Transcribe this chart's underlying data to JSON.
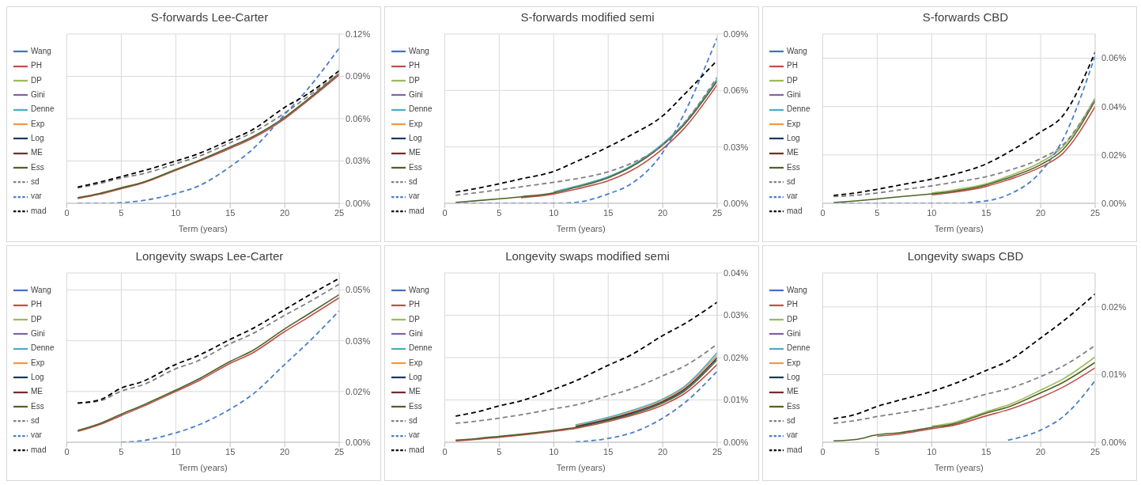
{
  "chart_data": [
    {
      "type": "line",
      "title": "S-forwards Lee-Carter",
      "xlabel": "Term (years)",
      "x": [
        1,
        3,
        5,
        7,
        10,
        12,
        15,
        17,
        20,
        22,
        25
      ],
      "xlim": [
        0,
        25
      ],
      "xticks": [
        0,
        5,
        10,
        15,
        20,
        25
      ],
      "ylim": [
        0,
        0.12
      ],
      "yticks": [
        {
          "value": 0,
          "label": "0.00%"
        },
        {
          "value": 0.03,
          "label": "0.03%"
        },
        {
          "value": 0.06,
          "label": "0.06%"
        },
        {
          "value": 0.09,
          "label": "0.09%"
        },
        {
          "value": 0.12,
          "label": "0.12%"
        }
      ],
      "grid": true,
      "legend": "left",
      "series": [
        {
          "name": "Wang",
          "color": "#4472c4",
          "line_style": "solid",
          "values": [
            null,
            null,
            null,
            null,
            null,
            null,
            null,
            null,
            null,
            null,
            null
          ]
        },
        {
          "name": "PH",
          "color": "#c0504d",
          "line_style": "solid",
          "values": [
            0.0034,
            0.0064,
            0.0104,
            0.0144,
            0.0234,
            0.0294,
            0.039,
            0.046,
            0.06,
            0.072,
            0.091
          ]
        },
        {
          "name": "DP",
          "color": "#9bbb59",
          "line_style": "solid",
          "values": [
            null,
            null,
            null,
            null,
            null,
            null,
            null,
            null,
            null,
            null,
            null
          ]
        },
        {
          "name": "Gini",
          "color": "#8064a2",
          "line_style": "solid",
          "values": [
            null,
            null,
            null,
            null,
            null,
            null,
            null,
            null,
            null,
            null,
            null
          ]
        },
        {
          "name": "Denne",
          "color": "#4bacc6",
          "line_style": "solid",
          "values": [
            null,
            null,
            null,
            null,
            null,
            null,
            null,
            null,
            null,
            null,
            null
          ]
        },
        {
          "name": "Exp",
          "color": "#f79646",
          "line_style": "solid",
          "values": [
            null,
            null,
            null,
            null,
            null,
            null,
            null,
            null,
            null,
            null,
            null
          ]
        },
        {
          "name": "Log",
          "color": "#1f3864",
          "line_style": "solid",
          "values": [
            null,
            null,
            null,
            null,
            null,
            null,
            null,
            null,
            null,
            null,
            null
          ]
        },
        {
          "name": "ME",
          "color": "#772c2a",
          "line_style": "solid",
          "values": [
            null,
            null,
            null,
            null,
            null,
            null,
            null,
            null,
            null,
            null,
            null
          ]
        },
        {
          "name": "Ess",
          "color": "#4f6228",
          "line_style": "solid",
          "values": [
            0.004,
            0.007,
            0.011,
            0.015,
            0.024,
            0.03,
            0.04,
            0.047,
            0.061,
            0.073,
            0.092
          ]
        },
        {
          "name": "sd",
          "color": "#808080",
          "line_style": "dashed",
          "values": [
            0.011,
            0.014,
            0.018,
            0.021,
            0.028,
            0.033,
            0.043,
            0.05,
            0.064,
            0.075,
            0.092
          ]
        },
        {
          "name": "var",
          "color": "#4a7ec8",
          "line_style": "dashed",
          "values": [
            0,
            0,
            0.0005,
            0.002,
            0.007,
            0.012,
            0.026,
            0.038,
            0.063,
            0.08,
            0.11
          ]
        },
        {
          "name": "mad",
          "color": "#000000",
          "line_style": "dashed",
          "values": [
            0.0115,
            0.015,
            0.019,
            0.023,
            0.03,
            0.035,
            0.045,
            0.052,
            0.068,
            0.077,
            0.094
          ]
        }
      ]
    },
    {
      "type": "line",
      "title": "S-forwards modified semi",
      "xlabel": "Term (years)",
      "x": [
        1,
        3,
        5,
        7,
        10,
        12,
        15,
        17,
        20,
        22,
        25
      ],
      "xlim": [
        0,
        25
      ],
      "xticks": [
        0,
        5,
        10,
        15,
        20,
        25
      ],
      "ylim": [
        0,
        0.09
      ],
      "yticks": [
        {
          "value": 0,
          "label": "0.00%"
        },
        {
          "value": 0.03,
          "label": "0.03%"
        },
        {
          "value": 0.06,
          "label": "0.06%"
        },
        {
          "value": 0.09,
          "label": "0.09%"
        }
      ],
      "grid": true,
      "legend": "left",
      "series": [
        {
          "name": "Wang",
          "color": "#4472c4",
          "line_style": "solid",
          "values": [
            null,
            null,
            null,
            null,
            null,
            null,
            null,
            null,
            null,
            null,
            null
          ]
        },
        {
          "name": "PH",
          "color": "#c0504d",
          "line_style": "solid",
          "values": [
            null,
            null,
            null,
            0.003,
            0.005,
            0.0075,
            0.012,
            0.017,
            0.029,
            0.04,
            0.063
          ]
        },
        {
          "name": "DP",
          "color": "#9bbb59",
          "line_style": "solid",
          "values": [
            null,
            null,
            null,
            null,
            null,
            null,
            null,
            null,
            null,
            null,
            null
          ]
        },
        {
          "name": "Gini",
          "color": "#8064a2",
          "line_style": "solid",
          "values": [
            null,
            null,
            null,
            null,
            null,
            null,
            null,
            null,
            null,
            null,
            null
          ]
        },
        {
          "name": "Denne",
          "color": "#4bacc6",
          "line_style": "solid",
          "values": [
            null,
            null,
            null,
            null,
            0.0061,
            0.009,
            0.0142,
            0.0196,
            0.0317,
            0.0427,
            0.066
          ]
        },
        {
          "name": "Exp",
          "color": "#f79646",
          "line_style": "solid",
          "values": [
            null,
            null,
            null,
            null,
            null,
            null,
            null,
            null,
            null,
            null,
            null
          ]
        },
        {
          "name": "Log",
          "color": "#1f3864",
          "line_style": "solid",
          "values": [
            null,
            null,
            null,
            null,
            null,
            null,
            null,
            null,
            null,
            null,
            null
          ]
        },
        {
          "name": "ME",
          "color": "#772c2a",
          "line_style": "solid",
          "values": [
            null,
            null,
            null,
            null,
            null,
            null,
            null,
            null,
            null,
            null,
            null
          ]
        },
        {
          "name": "Ess",
          "color": "#4f6228",
          "line_style": "solid",
          "values": [
            0.0005,
            0.0014,
            0.0024,
            0.0035,
            0.0056,
            0.0085,
            0.0136,
            0.019,
            0.031,
            0.042,
            0.065
          ]
        },
        {
          "name": "sd",
          "color": "#808080",
          "line_style": "dashed",
          "values": [
            0.0043,
            0.0057,
            0.0072,
            0.0088,
            0.0112,
            0.013,
            0.0168,
            0.021,
            0.031,
            0.043,
            0.067
          ]
        },
        {
          "name": "var",
          "color": "#4a7ec8",
          "line_style": "dashed",
          "values": [
            0,
            0,
            0,
            0,
            0,
            0.0005,
            0.005,
            0.01,
            0.027,
            0.048,
            0.088
          ]
        },
        {
          "name": "mad",
          "color": "#000000",
          "line_style": "dashed",
          "values": [
            0.006,
            0.008,
            0.0104,
            0.013,
            0.017,
            0.022,
            0.03,
            0.036,
            0.0465,
            0.058,
            0.076
          ]
        }
      ]
    },
    {
      "type": "line",
      "title": "S-forwards CBD",
      "xlabel": "Term (years)",
      "x": [
        1,
        3,
        5,
        7,
        10,
        12,
        15,
        17,
        20,
        22,
        25
      ],
      "xlim": [
        0,
        25
      ],
      "xticks": [
        0,
        5,
        10,
        15,
        20,
        25
      ],
      "ylim": [
        0,
        0.07
      ],
      "yticks": [
        {
          "value": 0,
          "label": "0.00%"
        },
        {
          "value": 0.02,
          "label": "0.02%"
        },
        {
          "value": 0.04,
          "label": "0.04%"
        },
        {
          "value": 0.06,
          "label": "0.06%"
        }
      ],
      "grid": true,
      "legend": "left",
      "series": [
        {
          "name": "Wang",
          "color": "#4472c4",
          "line_style": "solid",
          "values": [
            null,
            null,
            null,
            null,
            null,
            null,
            null,
            null,
            null,
            null,
            null
          ]
        },
        {
          "name": "PH",
          "color": "#c0504d",
          "line_style": "solid",
          "values": [
            null,
            null,
            null,
            null,
            0.0035,
            0.0046,
            0.007,
            0.0097,
            0.015,
            0.0205,
            0.04
          ]
        },
        {
          "name": "DP",
          "color": "#9bbb59",
          "line_style": "solid",
          "values": [
            null,
            null,
            null,
            null,
            0.0043,
            0.0055,
            0.0081,
            0.0112,
            0.017,
            0.0232,
            0.0435
          ]
        },
        {
          "name": "Gini",
          "color": "#8064a2",
          "line_style": "solid",
          "values": [
            null,
            null,
            null,
            null,
            null,
            null,
            null,
            null,
            null,
            null,
            null
          ]
        },
        {
          "name": "Denne",
          "color": "#4bacc6",
          "line_style": "solid",
          "values": [
            null,
            null,
            null,
            null,
            null,
            null,
            null,
            null,
            null,
            null,
            null
          ]
        },
        {
          "name": "Exp",
          "color": "#f79646",
          "line_style": "solid",
          "values": [
            null,
            null,
            null,
            null,
            null,
            null,
            null,
            null,
            null,
            null,
            null
          ]
        },
        {
          "name": "Log",
          "color": "#1f3864",
          "line_style": "solid",
          "values": [
            null,
            null,
            null,
            null,
            null,
            null,
            null,
            null,
            null,
            null,
            null
          ]
        },
        {
          "name": "ME",
          "color": "#772c2a",
          "line_style": "solid",
          "values": [
            null,
            null,
            null,
            null,
            null,
            null,
            null,
            null,
            null,
            null,
            null
          ]
        },
        {
          "name": "Ess",
          "color": "#4f6228",
          "line_style": "solid",
          "values": [
            0.0003,
            0.001,
            0.0018,
            0.0027,
            0.0039,
            0.005,
            0.0076,
            0.0105,
            0.016,
            0.022,
            0.0425
          ]
        },
        {
          "name": "sd",
          "color": "#808080",
          "line_style": "dashed",
          "values": [
            0.0028,
            0.0033,
            0.0043,
            0.0055,
            0.0072,
            0.0087,
            0.011,
            0.0135,
            0.0185,
            0.024,
            0.043
          ]
        },
        {
          "name": "var",
          "color": "#4a7ec8",
          "line_style": "dashed",
          "values": [
            0,
            0,
            0,
            0,
            0,
            0,
            0.001,
            0.0035,
            0.013,
            0.026,
            0.061
          ]
        },
        {
          "name": "mad",
          "color": "#000000",
          "line_style": "dashed",
          "values": [
            0.0033,
            0.0043,
            0.0058,
            0.0075,
            0.01,
            0.012,
            0.0163,
            0.021,
            0.0295,
            0.036,
            0.0625
          ]
        }
      ]
    },
    {
      "type": "line",
      "title": "Longevity swaps Lee-Carter",
      "xlabel": "Term (years)",
      "x": [
        1,
        3,
        5,
        7,
        10,
        12,
        15,
        17,
        20,
        22,
        25
      ],
      "xlim": [
        0,
        25
      ],
      "xticks": [
        0,
        5,
        10,
        15,
        20,
        25
      ],
      "ylim": [
        0,
        0.05
      ],
      "yticks": [
        {
          "value": 0,
          "label": "0.00%"
        },
        {
          "value": 0.015,
          "label": "0.02%"
        },
        {
          "value": 0.03,
          "label": "0.03%"
        },
        {
          "value": 0.045,
          "label": "0.05%"
        }
      ],
      "grid": true,
      "legend": "left",
      "series": [
        {
          "name": "Wang",
          "color": "#4472c4",
          "line_style": "solid",
          "values": [
            null,
            null,
            null,
            null,
            null,
            null,
            null,
            null,
            null,
            null,
            null
          ]
        },
        {
          "name": "PH",
          "color": "#c0504d",
          "line_style": "solid",
          "values": [
            0.0032,
            0.0052,
            0.0079,
            0.0106,
            0.015,
            0.018,
            0.0233,
            0.0263,
            0.0327,
            0.0366,
            0.0427
          ]
        },
        {
          "name": "DP",
          "color": "#9bbb59",
          "line_style": "solid",
          "values": [
            null,
            null,
            null,
            null,
            null,
            null,
            null,
            null,
            null,
            null,
            null
          ]
        },
        {
          "name": "Gini",
          "color": "#8064a2",
          "line_style": "solid",
          "values": [
            null,
            null,
            null,
            null,
            null,
            null,
            null,
            null,
            null,
            null,
            null
          ]
        },
        {
          "name": "Denne",
          "color": "#4bacc6",
          "line_style": "solid",
          "values": [
            null,
            null,
            null,
            null,
            null,
            null,
            null,
            null,
            null,
            null,
            null
          ]
        },
        {
          "name": "Exp",
          "color": "#f79646",
          "line_style": "solid",
          "values": [
            null,
            null,
            null,
            null,
            null,
            null,
            null,
            null,
            null,
            null,
            null
          ]
        },
        {
          "name": "Log",
          "color": "#1f3864",
          "line_style": "solid",
          "values": [
            null,
            null,
            null,
            null,
            null,
            null,
            null,
            null,
            null,
            null,
            null
          ]
        },
        {
          "name": "ME",
          "color": "#772c2a",
          "line_style": "solid",
          "values": [
            null,
            null,
            null,
            null,
            null,
            null,
            null,
            null,
            null,
            null,
            null
          ]
        },
        {
          "name": "Ess",
          "color": "#4f6228",
          "line_style": "solid",
          "values": [
            0.0035,
            0.0055,
            0.0083,
            0.011,
            0.0154,
            0.0185,
            0.0239,
            0.027,
            0.0335,
            0.0375,
            0.0436
          ]
        },
        {
          "name": "sd",
          "color": "#808080",
          "line_style": "dashed",
          "values": [
            0.0115,
            0.0122,
            0.0151,
            0.017,
            0.0217,
            0.024,
            0.0291,
            0.032,
            0.0375,
            0.041,
            0.0467
          ]
        },
        {
          "name": "var",
          "color": "#4a7ec8",
          "line_style": "dashed",
          "values": [
            null,
            null,
            0,
            0.0005,
            0.0028,
            0.005,
            0.0098,
            0.014,
            0.023,
            0.029,
            0.0388
          ]
        },
        {
          "name": "mad",
          "color": "#000000",
          "line_style": "dashed",
          "values": [
            0.0116,
            0.0125,
            0.016,
            0.018,
            0.023,
            0.0255,
            0.0304,
            0.0335,
            0.0392,
            0.043,
            0.0484
          ]
        }
      ]
    },
    {
      "type": "line",
      "title": "Longevity swaps modified semi",
      "xlabel": "Term (years)",
      "x": [
        1,
        3,
        5,
        7,
        10,
        12,
        15,
        17,
        20,
        22,
        25
      ],
      "xlim": [
        0,
        25
      ],
      "xticks": [
        0,
        5,
        10,
        15,
        20,
        25
      ],
      "ylim": [
        0,
        0.04
      ],
      "yticks": [
        {
          "value": 0,
          "label": "0.00%"
        },
        {
          "value": 0.01,
          "label": "0.01%"
        },
        {
          "value": 0.02,
          "label": "0.02%"
        },
        {
          "value": 0.03,
          "label": "0.03%"
        },
        {
          "value": 0.04,
          "label": "0.04%"
        }
      ],
      "grid": true,
      "legend": "left",
      "series": [
        {
          "name": "Wang",
          "color": "#4472c4",
          "line_style": "solid",
          "values": [
            null,
            null,
            null,
            null,
            null,
            null,
            null,
            null,
            null,
            null,
            null
          ]
        },
        {
          "name": "PH",
          "color": "#c0504d",
          "line_style": "solid",
          "values": [
            0.0003,
            0.0007,
            0.0012,
            0.0017,
            0.0026,
            0.0033,
            0.0049,
            0.0062,
            0.0088,
            0.0115,
            0.0184
          ]
        },
        {
          "name": "DP",
          "color": "#9bbb59",
          "line_style": "solid",
          "values": [
            null,
            null,
            null,
            null,
            null,
            null,
            null,
            null,
            null,
            null,
            null
          ]
        },
        {
          "name": "Gini",
          "color": "#8064a2",
          "line_style": "solid",
          "values": [
            null,
            null,
            null,
            null,
            null,
            null,
            null,
            null,
            null,
            null,
            null
          ]
        },
        {
          "name": "Denne",
          "color": "#4bacc6",
          "line_style": "solid",
          "values": [
            null,
            null,
            null,
            null,
            null,
            0.0041,
            0.0059,
            0.0074,
            0.0102,
            0.0132,
            0.0212
          ]
        },
        {
          "name": "Exp",
          "color": "#f79646",
          "line_style": "solid",
          "values": [
            null,
            null,
            null,
            null,
            null,
            0.0039,
            0.0056,
            0.0071,
            0.0099,
            0.0129,
            0.0206
          ]
        },
        {
          "name": "Log",
          "color": "#1f3864",
          "line_style": "solid",
          "values": [
            null,
            null,
            null,
            null,
            null,
            0.0037,
            0.0054,
            0.0068,
            0.0096,
            0.0125,
            0.02
          ]
        },
        {
          "name": "ME",
          "color": "#772c2a",
          "line_style": "solid",
          "values": [
            null,
            null,
            null,
            null,
            null,
            null,
            null,
            null,
            null,
            null,
            null
          ]
        },
        {
          "name": "Ess",
          "color": "#4f6228",
          "line_style": "solid",
          "values": [
            0.0005,
            0.0009,
            0.0014,
            0.0019,
            0.0028,
            0.0035,
            0.0052,
            0.0065,
            0.0093,
            0.0121,
            0.0195
          ]
        },
        {
          "name": "sd",
          "color": "#808080",
          "line_style": "dashed",
          "values": [
            0.0045,
            0.005,
            0.0057,
            0.0065,
            0.0079,
            0.0088,
            0.011,
            0.0125,
            0.0157,
            0.018,
            0.0232
          ]
        },
        {
          "name": "var",
          "color": "#4a7ec8",
          "line_style": "dashed",
          "values": [
            null,
            null,
            null,
            null,
            null,
            0.0001,
            0.0009,
            0.0021,
            0.0057,
            0.0093,
            0.0168
          ]
        },
        {
          "name": "mad",
          "color": "#000000",
          "line_style": "dashed",
          "values": [
            0.0062,
            0.0072,
            0.0086,
            0.0098,
            0.0125,
            0.0145,
            0.0182,
            0.0205,
            0.0252,
            0.028,
            0.0331
          ]
        }
      ]
    },
    {
      "type": "line",
      "title": "Longevity swaps CBD",
      "xlabel": "Term (years)",
      "x": [
        1,
        3,
        5,
        7,
        10,
        12,
        15,
        17,
        20,
        22,
        25
      ],
      "xlim": [
        0,
        25
      ],
      "xticks": [
        0,
        5,
        10,
        15,
        20,
        25
      ],
      "ylim": [
        0,
        0.025
      ],
      "yticks": [
        {
          "value": 0,
          "label": "0.00%"
        },
        {
          "value": 0.01,
          "label": "0.01%"
        },
        {
          "value": 0.02,
          "label": "0.02%"
        }
      ],
      "grid": true,
      "legend": "left",
      "series": [
        {
          "name": "Wang",
          "color": "#4472c4",
          "line_style": "solid",
          "values": [
            null,
            null,
            null,
            null,
            null,
            null,
            null,
            null,
            null,
            null,
            null
          ]
        },
        {
          "name": "PH",
          "color": "#c0504d",
          "line_style": "solid",
          "values": [
            null,
            null,
            0.0009,
            0.0012,
            0.002,
            0.0025,
            0.0039,
            0.0048,
            0.0066,
            0.0081,
            0.011
          ]
        },
        {
          "name": "DP",
          "color": "#9bbb59",
          "line_style": "solid",
          "values": [
            null,
            null,
            null,
            null,
            0.0024,
            0.0029,
            0.0045,
            0.0055,
            0.0077,
            0.0093,
            0.0126
          ]
        },
        {
          "name": "Gini",
          "color": "#8064a2",
          "line_style": "solid",
          "values": [
            null,
            null,
            null,
            null,
            null,
            null,
            null,
            null,
            null,
            null,
            null
          ]
        },
        {
          "name": "Denne",
          "color": "#4bacc6",
          "line_style": "solid",
          "values": [
            null,
            null,
            null,
            null,
            null,
            null,
            null,
            null,
            null,
            null,
            null
          ]
        },
        {
          "name": "Exp",
          "color": "#f79646",
          "line_style": "solid",
          "values": [
            null,
            null,
            null,
            null,
            null,
            null,
            null,
            null,
            null,
            null,
            null
          ]
        },
        {
          "name": "Log",
          "color": "#1f3864",
          "line_style": "solid",
          "values": [
            null,
            null,
            null,
            null,
            null,
            null,
            null,
            null,
            null,
            null,
            null
          ]
        },
        {
          "name": "ME",
          "color": "#772c2a",
          "line_style": "solid",
          "values": [
            null,
            null,
            null,
            null,
            null,
            null,
            null,
            null,
            null,
            null,
            null
          ]
        },
        {
          "name": "Ess",
          "color": "#4f6228",
          "line_style": "solid",
          "values": [
            0.0002,
            0.0004,
            0.0011,
            0.0014,
            0.0022,
            0.0027,
            0.0043,
            0.0052,
            0.0073,
            0.0088,
            0.0118
          ]
        },
        {
          "name": "sd",
          "color": "#808080",
          "line_style": "dashed",
          "values": [
            0.0028,
            0.0032,
            0.0038,
            0.0043,
            0.0051,
            0.0058,
            0.0071,
            0.0079,
            0.0097,
            0.0112,
            0.0143
          ]
        },
        {
          "name": "var",
          "color": "#4a7ec8",
          "line_style": "dashed",
          "values": [
            null,
            null,
            null,
            null,
            null,
            null,
            null,
            0.0003,
            0.0018,
            0.0037,
            0.0091
          ]
        },
        {
          "name": "mad",
          "color": "#000000",
          "line_style": "dashed",
          "values": [
            0.0035,
            0.0041,
            0.0053,
            0.0062,
            0.0075,
            0.0086,
            0.0106,
            0.012,
            0.0154,
            0.0178,
            0.0219
          ]
        }
      ]
    }
  ]
}
